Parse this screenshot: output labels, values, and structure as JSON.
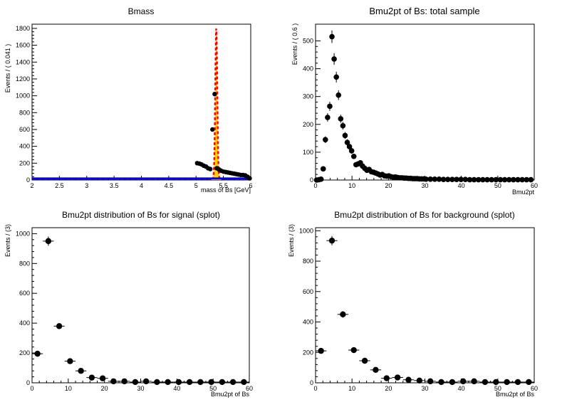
{
  "chart_data": [
    {
      "type": "scatter",
      "title": "Bmass",
      "xlabel": "mass of Bs [GeV]",
      "ylabel": "Events / ( 0.041 )",
      "xlim": [
        2,
        6
      ],
      "ylim": [
        0,
        1850
      ],
      "xticks": [
        "2",
        "2.5",
        "3",
        "3.5",
        "4",
        "4.5",
        "5",
        "5.5",
        "6"
      ],
      "yticks": [
        "0",
        "200",
        "400",
        "600",
        "800",
        "1000",
        "1200",
        "1400",
        "1600",
        "1800"
      ],
      "grid": false,
      "series": [
        {
          "kind": "points",
          "x": [
            2.02,
            2.06,
            2.1,
            2.14,
            2.18,
            2.22,
            2.26,
            2.3,
            2.34,
            2.38,
            2.42,
            2.46,
            2.5,
            2.54,
            2.58,
            2.62,
            2.66,
            2.7,
            2.74,
            2.78,
            2.82,
            2.86,
            2.9,
            2.94,
            2.98,
            3.02,
            3.06,
            3.1,
            3.14,
            3.18,
            3.22,
            3.26,
            3.3,
            3.34,
            3.38,
            3.42,
            3.46,
            3.5,
            3.54,
            3.58,
            3.62,
            3.66,
            3.7,
            3.74,
            3.78,
            3.82,
            3.86,
            3.9,
            3.94,
            3.98,
            4.02,
            4.06,
            4.1,
            4.14,
            4.18,
            4.22,
            4.26,
            4.3,
            4.34,
            4.38,
            4.42,
            4.46,
            4.5,
            4.54,
            4.58,
            4.62,
            4.66,
            4.7,
            4.74,
            4.78,
            4.82,
            4.86,
            4.9,
            4.94,
            4.98,
            5.02,
            5.06,
            5.1,
            5.14,
            5.18,
            5.22,
            5.26,
            5.3,
            5.34,
            5.38,
            5.42,
            5.46,
            5.5,
            5.54,
            5.58,
            5.62,
            5.66,
            5.7,
            5.74,
            5.78,
            5.82,
            5.86,
            5.9,
            5.94,
            5.98
          ],
          "y": [
            0,
            0,
            0,
            0,
            0,
            0,
            0,
            0,
            0,
            0,
            0,
            0,
            0,
            0,
            0,
            0,
            0,
            0,
            0,
            0,
            0,
            0,
            0,
            0,
            0,
            0,
            0,
            0,
            0,
            0,
            0,
            0,
            0,
            0,
            0,
            0,
            0,
            0,
            0,
            0,
            0,
            0,
            0,
            0,
            0,
            0,
            0,
            0,
            0,
            0,
            0,
            0,
            0,
            0,
            0,
            0,
            0,
            0,
            0,
            0,
            0,
            0,
            0,
            0,
            0,
            0,
            0,
            0,
            0,
            0,
            0,
            0,
            0,
            0,
            0,
            200,
            195,
            185,
            170,
            160,
            140,
            130,
            600,
            1020,
            140,
            125,
            110,
            100,
            95,
            90,
            85,
            80,
            75,
            70,
            65,
            60,
            60,
            55,
            40,
            20
          ],
          "color": "#000000"
        },
        {
          "kind": "line",
          "name": "",
          "x": [
            2.0,
            6.0
          ],
          "y": [
            18,
            18
          ],
          "color": "#0000ff"
        },
        {
          "kind": "peak",
          "center": 5.37,
          "sigma": 0.018,
          "height": 1780,
          "color": "#ff0000",
          "fill": "#ffd000"
        }
      ]
    },
    {
      "type": "scatter",
      "title": "Bmu2pt of Bs: total sample",
      "xlabel": "Bmu2pt",
      "ylabel": "Events / ( 0.6 )",
      "xlim": [
        0,
        60
      ],
      "ylim": [
        0,
        560
      ],
      "xticks": [
        "0",
        "10",
        "20",
        "30",
        "40",
        "50",
        "60"
      ],
      "yticks": [
        "0",
        "100",
        "200",
        "300",
        "400",
        "500"
      ],
      "grid": false,
      "x": [
        0.3,
        0.9,
        1.5,
        2.1,
        2.7,
        3.3,
        3.9,
        4.5,
        5.1,
        5.7,
        6.3,
        6.9,
        7.5,
        8.1,
        8.7,
        9.3,
        9.9,
        10.5,
        11.1,
        11.7,
        12.3,
        12.9,
        13.5,
        14.1,
        14.7,
        15.3,
        15.9,
        16.5,
        17.1,
        17.7,
        18.3,
        18.9,
        19.5,
        20.1,
        20.7,
        21.3,
        21.9,
        22.5,
        23.1,
        23.7,
        24.3,
        24.9,
        25.5,
        26.1,
        26.7,
        27.3,
        27.9,
        28.5,
        29.1,
        29.7,
        30.3,
        31.5,
        32.7,
        33.9,
        35.1,
        36.3,
        37.5,
        38.7,
        39.9,
        41.1,
        42.3,
        43.5,
        44.7,
        45.9,
        47.1,
        48.3,
        49.5,
        50.7,
        51.9,
        53.1,
        54.3,
        55.5,
        56.7,
        57.9,
        59.1
      ],
      "y": [
        0,
        1,
        3,
        40,
        145,
        225,
        265,
        515,
        435,
        370,
        305,
        220,
        195,
        160,
        135,
        120,
        105,
        85,
        55,
        58,
        62,
        50,
        42,
        35,
        38,
        30,
        28,
        25,
        22,
        18,
        20,
        15,
        14,
        15,
        12,
        10,
        11,
        9,
        8,
        8,
        7,
        7,
        6,
        6,
        5,
        5,
        5,
        4,
        4,
        4,
        3,
        3,
        3,
        3,
        2,
        2,
        2,
        2,
        2,
        2,
        1,
        1,
        1,
        1,
        1,
        1,
        1,
        1,
        1,
        1,
        1,
        1,
        1,
        1,
        1
      ],
      "error": true,
      "color": "#000000"
    },
    {
      "type": "scatter",
      "title": "Bmu2pt distribution of Bs for signal (splot)",
      "xlabel": "Bmu2pt of Bs",
      "ylabel": "Events / (3)",
      "xlim": [
        0,
        60
      ],
      "ylim": [
        0,
        1040
      ],
      "xticks": [
        "0",
        "10",
        "20",
        "30",
        "40",
        "50",
        "60"
      ],
      "yticks": [
        "0",
        "200",
        "400",
        "600",
        "800",
        "1000"
      ],
      "grid": false,
      "x": [
        1.5,
        4.5,
        7.5,
        10.5,
        13.5,
        16.5,
        19.5,
        22.5,
        25.5,
        28.5,
        31.5,
        34.5,
        37.5,
        40.5,
        43.5,
        46.5,
        49.5,
        52.5,
        55.5,
        58.5
      ],
      "y": [
        195,
        950,
        380,
        145,
        80,
        35,
        30,
        10,
        10,
        5,
        10,
        5,
        5,
        5,
        5,
        5,
        5,
        5,
        5,
        5
      ],
      "error": true,
      "color": "#000000"
    },
    {
      "type": "scatter",
      "title": "Bmu2pt distribution of Bs for background (splot)",
      "xlabel": "Bmu2pt of Bs",
      "ylabel": "Events / (3)",
      "xlim": [
        0,
        60
      ],
      "ylim": [
        0,
        1020
      ],
      "xticks": [
        "0",
        "10",
        "20",
        "30",
        "40",
        "50",
        "60"
      ],
      "yticks": [
        "0",
        "200",
        "400",
        "600",
        "800",
        "1000"
      ],
      "grid": false,
      "x": [
        1.5,
        4.5,
        7.5,
        10.5,
        13.5,
        16.5,
        19.5,
        22.5,
        25.5,
        28.5,
        31.5,
        34.5,
        37.5,
        40.5,
        43.5,
        46.5,
        49.5,
        52.5,
        55.5,
        58.5
      ],
      "y": [
        210,
        935,
        450,
        215,
        145,
        85,
        30,
        35,
        20,
        15,
        10,
        5,
        5,
        10,
        10,
        5,
        5,
        5,
        5,
        5
      ],
      "error": true,
      "color": "#000000"
    }
  ]
}
